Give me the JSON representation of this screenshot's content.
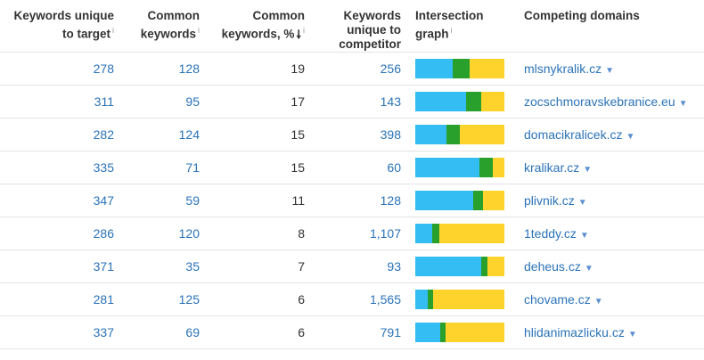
{
  "headers": {
    "unique_target": "Keywords unique to target",
    "common": "Common keywords",
    "common_pct": "Common keywords, %",
    "unique_competitor": "Keywords unique to competitor",
    "graph": "Intersection graph",
    "domains": "Competing domains"
  },
  "rows": [
    {
      "unique_target": "278",
      "common": "128",
      "pct": "19",
      "unique_competitor": "256",
      "domain": "mlsnykralik.cz",
      "bar": [
        0.42,
        0.19,
        0.39
      ]
    },
    {
      "unique_target": "311",
      "common": "95",
      "pct": "17",
      "unique_competitor": "143",
      "domain": "zocschmoravskebranice.eu",
      "bar": [
        0.57,
        0.17,
        0.26
      ]
    },
    {
      "unique_target": "282",
      "common": "124",
      "pct": "15",
      "unique_competitor": "398",
      "domain": "domacikralicek.cz",
      "bar": [
        0.35,
        0.15,
        0.5
      ]
    },
    {
      "unique_target": "335",
      "common": "71",
      "pct": "15",
      "unique_competitor": "60",
      "domain": "kralikar.cz",
      "bar": [
        0.72,
        0.15,
        0.13
      ]
    },
    {
      "unique_target": "347",
      "common": "59",
      "pct": "11",
      "unique_competitor": "128",
      "domain": "plivnik.cz",
      "bar": [
        0.65,
        0.11,
        0.24
      ]
    },
    {
      "unique_target": "286",
      "common": "120",
      "pct": "8",
      "unique_competitor": "1,107",
      "domain": "1teddy.cz",
      "bar": [
        0.19,
        0.08,
        0.73
      ]
    },
    {
      "unique_target": "371",
      "common": "35",
      "pct": "7",
      "unique_competitor": "93",
      "domain": "deheus.cz",
      "bar": [
        0.74,
        0.07,
        0.19
      ]
    },
    {
      "unique_target": "281",
      "common": "125",
      "pct": "6",
      "unique_competitor": "1,565",
      "domain": "chovame.cz",
      "bar": [
        0.14,
        0.06,
        0.8
      ]
    },
    {
      "unique_target": "337",
      "common": "69",
      "pct": "6",
      "unique_competitor": "791",
      "domain": "hlidanimazlicku.cz",
      "bar": [
        0.28,
        0.06,
        0.66
      ]
    }
  ],
  "icons": {
    "info": "info-icon",
    "sort": "sort-down-arrow-icon",
    "caret": "dropdown-caret-icon"
  },
  "colors": {
    "link": "#2b73b7",
    "bar_unique_target": "#34bdf3",
    "bar_common": "#2aa02c",
    "bar_unique_competitor": "#fdd32c"
  }
}
